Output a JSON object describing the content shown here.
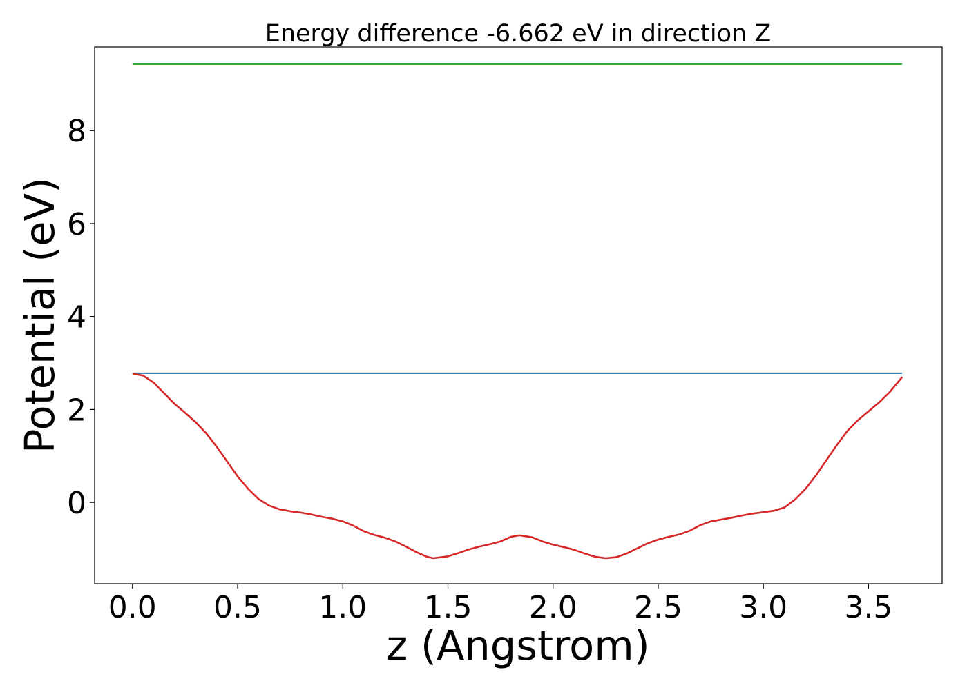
{
  "chart_data": {
    "type": "line",
    "title": "Energy difference -6.662 eV in direction Z",
    "xlabel": "z (Angstrom)",
    "ylabel": "Potential (eV)",
    "xlim": [
      -0.18,
      3.85
    ],
    "ylim": [
      -1.75,
      9.8
    ],
    "grid": false,
    "legend": "none",
    "x_ticks": [
      0.0,
      0.5,
      1.0,
      1.5,
      2.0,
      2.5,
      3.0,
      3.5
    ],
    "x_tick_labels": [
      "0.0",
      "0.5",
      "1.0",
      "1.5",
      "2.0",
      "2.5",
      "3.0",
      "3.5"
    ],
    "y_ticks": [
      0,
      2,
      4,
      6,
      8
    ],
    "y_tick_labels": [
      "0",
      "2",
      "4",
      "6",
      "8"
    ],
    "series": [
      {
        "color": "#2ca02c",
        "x": [
          0.0,
          3.66
        ],
        "y": [
          9.43,
          9.43
        ]
      },
      {
        "color": "#1f77b4",
        "x": [
          0.0,
          3.66
        ],
        "y": [
          2.78,
          2.78
        ]
      },
      {
        "color": "#d62728",
        "x": [
          0.0,
          0.05,
          0.1,
          0.15,
          0.2,
          0.25,
          0.3,
          0.35,
          0.4,
          0.45,
          0.5,
          0.55,
          0.6,
          0.65,
          0.7,
          0.75,
          0.8,
          0.85,
          0.9,
          0.95,
          1.0,
          1.05,
          1.1,
          1.15,
          1.2,
          1.25,
          1.3,
          1.35,
          1.4,
          1.43,
          1.5,
          1.55,
          1.6,
          1.65,
          1.7,
          1.75,
          1.8,
          1.84,
          1.9,
          1.95,
          2.0,
          2.05,
          2.1,
          2.15,
          2.2,
          2.25,
          2.3,
          2.35,
          2.4,
          2.45,
          2.5,
          2.55,
          2.6,
          2.65,
          2.7,
          2.75,
          2.8,
          2.85,
          2.9,
          2.95,
          3.0,
          3.05,
          3.1,
          3.15,
          3.2,
          3.25,
          3.3,
          3.35,
          3.4,
          3.45,
          3.5,
          3.55,
          3.6,
          3.66
        ],
        "y": [
          2.77,
          2.73,
          2.58,
          2.35,
          2.12,
          1.93,
          1.73,
          1.49,
          1.2,
          0.88,
          0.56,
          0.29,
          0.07,
          -0.07,
          -0.15,
          -0.19,
          -0.22,
          -0.26,
          -0.31,
          -0.35,
          -0.41,
          -0.5,
          -0.62,
          -0.7,
          -0.76,
          -0.84,
          -0.95,
          -1.07,
          -1.17,
          -1.2,
          -1.16,
          -1.09,
          -1.01,
          -0.95,
          -0.9,
          -0.84,
          -0.74,
          -0.71,
          -0.75,
          -0.84,
          -0.91,
          -0.96,
          -1.02,
          -1.1,
          -1.17,
          -1.2,
          -1.18,
          -1.1,
          -0.99,
          -0.88,
          -0.8,
          -0.74,
          -0.69,
          -0.61,
          -0.49,
          -0.41,
          -0.37,
          -0.33,
          -0.28,
          -0.24,
          -0.21,
          -0.18,
          -0.11,
          0.06,
          0.29,
          0.58,
          0.91,
          1.24,
          1.54,
          1.77,
          1.96,
          2.15,
          2.37,
          2.7
        ]
      }
    ]
  }
}
